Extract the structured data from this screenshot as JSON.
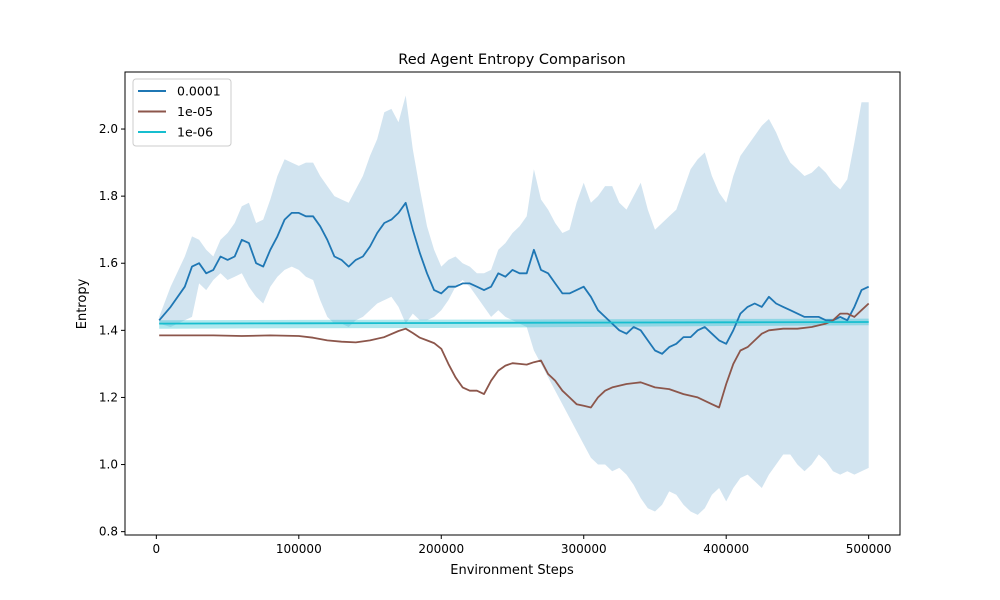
{
  "chart_data": {
    "type": "line",
    "title": "Red Agent Entropy Comparison",
    "xlabel": "Environment Steps",
    "ylabel": "Entropy",
    "xlim": [
      -22000,
      522000
    ],
    "ylim": [
      0.79,
      2.17
    ],
    "xticks": [
      0,
      100000,
      200000,
      300000,
      400000,
      500000
    ],
    "xtick_labels": [
      "0",
      "100000",
      "200000",
      "300000",
      "400000",
      "500000"
    ],
    "yticks": [
      0.8,
      1.0,
      1.2,
      1.4,
      1.6,
      1.8,
      2.0
    ],
    "ytick_labels": [
      "0.8",
      "1.0",
      "1.2",
      "1.4",
      "1.6",
      "1.8",
      "2.0"
    ],
    "grid": false,
    "legend_position": "upper-left",
    "series": [
      {
        "name": "0.0001",
        "color": "#1f77b4",
        "band_opacity": 0.2,
        "x": [
          2000,
          10000,
          20000,
          25000,
          30000,
          35000,
          40000,
          45000,
          50000,
          55000,
          60000,
          65000,
          70000,
          75000,
          80000,
          85000,
          90000,
          95000,
          100000,
          105000,
          110000,
          115000,
          120000,
          125000,
          130000,
          135000,
          140000,
          145000,
          150000,
          155000,
          160000,
          165000,
          170000,
          175000,
          180000,
          185000,
          190000,
          195000,
          200000,
          205000,
          210000,
          215000,
          220000,
          225000,
          230000,
          235000,
          240000,
          245000,
          250000,
          255000,
          260000,
          265000,
          270000,
          275000,
          280000,
          285000,
          290000,
          295000,
          300000,
          305000,
          310000,
          315000,
          320000,
          325000,
          330000,
          335000,
          340000,
          345000,
          350000,
          355000,
          360000,
          365000,
          370000,
          375000,
          380000,
          385000,
          390000,
          395000,
          400000,
          405000,
          410000,
          415000,
          420000,
          425000,
          430000,
          435000,
          440000,
          445000,
          450000,
          455000,
          460000,
          465000,
          470000,
          475000,
          480000,
          485000,
          490000,
          495000,
          500000
        ],
        "y": [
          1.43,
          1.47,
          1.53,
          1.59,
          1.6,
          1.57,
          1.58,
          1.62,
          1.61,
          1.62,
          1.67,
          1.66,
          1.6,
          1.59,
          1.64,
          1.68,
          1.73,
          1.75,
          1.75,
          1.74,
          1.74,
          1.71,
          1.67,
          1.62,
          1.61,
          1.59,
          1.61,
          1.62,
          1.65,
          1.69,
          1.72,
          1.73,
          1.75,
          1.78,
          1.7,
          1.63,
          1.57,
          1.52,
          1.51,
          1.53,
          1.53,
          1.54,
          1.54,
          1.53,
          1.52,
          1.53,
          1.57,
          1.56,
          1.58,
          1.57,
          1.57,
          1.64,
          1.58,
          1.57,
          1.54,
          1.51,
          1.51,
          1.52,
          1.53,
          1.5,
          1.46,
          1.44,
          1.42,
          1.4,
          1.39,
          1.41,
          1.4,
          1.37,
          1.34,
          1.33,
          1.35,
          1.36,
          1.38,
          1.38,
          1.4,
          1.41,
          1.39,
          1.37,
          1.36,
          1.4,
          1.45,
          1.47,
          1.48,
          1.47,
          1.5,
          1.48,
          1.47,
          1.46,
          1.45,
          1.44,
          1.44,
          1.44,
          1.43,
          1.43,
          1.44,
          1.43,
          1.47,
          1.52,
          1.53
        ],
        "lower": [
          1.42,
          1.41,
          1.43,
          1.44,
          1.54,
          1.52,
          1.55,
          1.57,
          1.55,
          1.56,
          1.57,
          1.53,
          1.5,
          1.48,
          1.53,
          1.56,
          1.58,
          1.59,
          1.58,
          1.56,
          1.55,
          1.49,
          1.44,
          1.42,
          1.42,
          1.41,
          1.43,
          1.44,
          1.46,
          1.48,
          1.49,
          1.5,
          1.47,
          1.42,
          1.45,
          1.43,
          1.43,
          1.44,
          1.46,
          1.49,
          1.53,
          1.55,
          1.53,
          1.5,
          1.47,
          1.44,
          1.46,
          1.44,
          1.43,
          1.42,
          1.41,
          1.34,
          1.3,
          1.26,
          1.22,
          1.18,
          1.14,
          1.1,
          1.06,
          1.02,
          1.0,
          1.0,
          0.98,
          0.99,
          0.97,
          0.94,
          0.9,
          0.87,
          0.86,
          0.88,
          0.92,
          0.91,
          0.88,
          0.86,
          0.85,
          0.87,
          0.91,
          0.93,
          0.89,
          0.93,
          0.96,
          0.97,
          0.95,
          0.93,
          0.97,
          1.0,
          1.03,
          1.03,
          1.0,
          0.98,
          1.0,
          1.03,
          1.01,
          0.98,
          0.97,
          0.98,
          0.97,
          0.98,
          0.99
        ],
        "upper": [
          1.44,
          1.53,
          1.62,
          1.68,
          1.67,
          1.64,
          1.62,
          1.67,
          1.69,
          1.72,
          1.77,
          1.78,
          1.72,
          1.73,
          1.79,
          1.86,
          1.91,
          1.9,
          1.89,
          1.9,
          1.9,
          1.86,
          1.83,
          1.8,
          1.79,
          1.78,
          1.82,
          1.86,
          1.92,
          1.97,
          2.05,
          2.06,
          2.02,
          2.1,
          1.94,
          1.82,
          1.71,
          1.64,
          1.59,
          1.61,
          1.62,
          1.6,
          1.59,
          1.57,
          1.57,
          1.58,
          1.64,
          1.66,
          1.69,
          1.71,
          1.74,
          1.88,
          1.79,
          1.76,
          1.72,
          1.69,
          1.7,
          1.78,
          1.84,
          1.78,
          1.8,
          1.83,
          1.83,
          1.78,
          1.76,
          1.8,
          1.84,
          1.76,
          1.7,
          1.72,
          1.74,
          1.76,
          1.82,
          1.88,
          1.91,
          1.93,
          1.86,
          1.81,
          1.78,
          1.86,
          1.92,
          1.95,
          1.98,
          2.01,
          2.03,
          1.99,
          1.94,
          1.9,
          1.88,
          1.86,
          1.87,
          1.89,
          1.87,
          1.84,
          1.82,
          1.85,
          1.96,
          2.08,
          2.08
        ]
      },
      {
        "name": "1e-05",
        "color": "#8c564b",
        "band_opacity": 0.2,
        "x": [
          2000,
          20000,
          40000,
          60000,
          80000,
          100000,
          110000,
          120000,
          130000,
          140000,
          150000,
          160000,
          170000,
          175000,
          180000,
          185000,
          190000,
          195000,
          200000,
          205000,
          210000,
          215000,
          220000,
          225000,
          230000,
          235000,
          240000,
          245000,
          250000,
          255000,
          260000,
          265000,
          270000,
          275000,
          280000,
          285000,
          290000,
          295000,
          300000,
          305000,
          310000,
          315000,
          320000,
          330000,
          340000,
          350000,
          360000,
          370000,
          380000,
          390000,
          395000,
          400000,
          405000,
          410000,
          415000,
          420000,
          425000,
          430000,
          440000,
          450000,
          460000,
          470000,
          475000,
          480000,
          485000,
          490000,
          495000,
          500000
        ],
        "y": [
          1.385,
          1.385,
          1.385,
          1.383,
          1.385,
          1.383,
          1.378,
          1.37,
          1.366,
          1.364,
          1.37,
          1.38,
          1.398,
          1.405,
          1.392,
          1.378,
          1.37,
          1.362,
          1.345,
          1.3,
          1.26,
          1.23,
          1.22,
          1.22,
          1.21,
          1.25,
          1.28,
          1.295,
          1.302,
          1.3,
          1.298,
          1.305,
          1.31,
          1.27,
          1.25,
          1.22,
          1.2,
          1.18,
          1.175,
          1.17,
          1.2,
          1.22,
          1.23,
          1.24,
          1.245,
          1.23,
          1.225,
          1.21,
          1.2,
          1.18,
          1.17,
          1.24,
          1.3,
          1.34,
          1.35,
          1.37,
          1.39,
          1.4,
          1.405,
          1.405,
          1.41,
          1.42,
          1.43,
          1.45,
          1.45,
          1.44,
          1.46,
          1.48
        ],
        "lower": [],
        "upper": []
      },
      {
        "name": "1e-06",
        "color": "#17becf",
        "band_opacity": 0.35,
        "x": [
          2000,
          100000,
          200000,
          300000,
          400000,
          500000
        ],
        "y": [
          1.42,
          1.421,
          1.422,
          1.423,
          1.424,
          1.425
        ],
        "lower": [
          1.405,
          1.406,
          1.407,
          1.41,
          1.413,
          1.415
        ],
        "upper": [
          1.43,
          1.431,
          1.432,
          1.433,
          1.434,
          1.435
        ]
      }
    ]
  }
}
